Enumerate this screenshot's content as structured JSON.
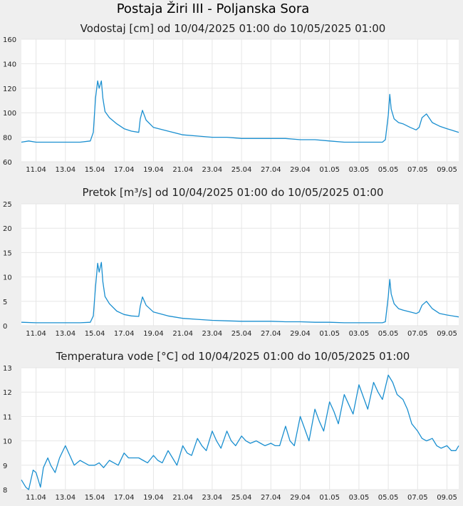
{
  "page_title": "Postaja Žiri III - Poljanska Sora",
  "chart_data": [
    {
      "type": "line",
      "title": "Vodostaj [cm] od 10/04/2025 01:00 do 10/05/2025 01:00",
      "xlabel": "",
      "ylabel": "",
      "ylim": [
        60,
        160
      ],
      "yticks": [
        "60",
        "80",
        "100",
        "120",
        "140",
        "160"
      ],
      "xlim": [
        0,
        29.8
      ],
      "xticks": [
        {
          "x": 1,
          "label": "11.04"
        },
        {
          "x": 3,
          "label": "13.04"
        },
        {
          "x": 5,
          "label": "15.04"
        },
        {
          "x": 7,
          "label": "17.04"
        },
        {
          "x": 9,
          "label": "19.04"
        },
        {
          "x": 11,
          "label": "21.04"
        },
        {
          "x": 13,
          "label": "23.04"
        },
        {
          "x": 15,
          "label": "25.04"
        },
        {
          "x": 17,
          "label": "27.04"
        },
        {
          "x": 19,
          "label": "29.04"
        },
        {
          "x": 21,
          "label": "01.05"
        },
        {
          "x": 23,
          "label": "03.05"
        },
        {
          "x": 25,
          "label": "05.05"
        },
        {
          "x": 27,
          "label": "07.05"
        },
        {
          "x": 29,
          "label": "09.05"
        }
      ],
      "grid": true,
      "line_color": "#1a8fd0",
      "x": [
        0,
        0.5,
        1,
        1.5,
        2,
        3,
        4,
        4.7,
        4.9,
        5.05,
        5.2,
        5.3,
        5.45,
        5.55,
        5.7,
        6.0,
        6.5,
        7.0,
        7.5,
        8.0,
        8.1,
        8.25,
        8.5,
        9.0,
        10,
        11,
        12,
        13,
        14,
        15,
        16,
        17,
        18,
        19,
        20,
        21,
        22,
        23,
        24,
        24.6,
        24.8,
        25.0,
        25.1,
        25.2,
        25.4,
        25.7,
        26,
        26.5,
        26.9,
        27.1,
        27.3,
        27.6,
        28,
        28.5,
        29,
        29.8
      ],
      "values": [
        76,
        77,
        76,
        76,
        76,
        76,
        76,
        77,
        84,
        112,
        126,
        120,
        126,
        112,
        101,
        96,
        91,
        87,
        85,
        84,
        95,
        102,
        94,
        88,
        85,
        82,
        81,
        80,
        80,
        79,
        79,
        79,
        79,
        78,
        78,
        77,
        76,
        76,
        76,
        76,
        78,
        98,
        115,
        103,
        95,
        92,
        91,
        88,
        86,
        88,
        96,
        99,
        92,
        89,
        87,
        84
      ],
      "series": []
    },
    {
      "type": "line",
      "title": "Pretok [m³/s] od 10/04/2025 01:00 do 10/05/2025 01:00",
      "xlabel": "",
      "ylabel": "",
      "ylim": [
        0,
        25
      ],
      "yticks": [
        "0",
        "5",
        "10",
        "15",
        "20",
        "25"
      ],
      "xlim": [
        0,
        29.8
      ],
      "xticks": [
        {
          "x": 1,
          "label": "11.04"
        },
        {
          "x": 3,
          "label": "13.04"
        },
        {
          "x": 5,
          "label": "15.04"
        },
        {
          "x": 7,
          "label": "17.04"
        },
        {
          "x": 9,
          "label": "19.04"
        },
        {
          "x": 11,
          "label": "21.04"
        },
        {
          "x": 13,
          "label": "23.04"
        },
        {
          "x": 15,
          "label": "25.04"
        },
        {
          "x": 17,
          "label": "27.04"
        },
        {
          "x": 19,
          "label": "29.04"
        },
        {
          "x": 21,
          "label": "01.05"
        },
        {
          "x": 23,
          "label": "03.05"
        },
        {
          "x": 25,
          "label": "05.05"
        },
        {
          "x": 27,
          "label": "07.05"
        },
        {
          "x": 29,
          "label": "09.05"
        }
      ],
      "grid": true,
      "line_color": "#1a8fd0",
      "x": [
        0,
        1,
        2,
        3,
        4,
        4.7,
        4.9,
        5.05,
        5.2,
        5.3,
        5.45,
        5.55,
        5.7,
        6.0,
        6.5,
        7.0,
        7.5,
        8.0,
        8.1,
        8.25,
        8.5,
        9.0,
        10,
        11,
        12,
        13,
        14,
        15,
        16,
        17,
        18,
        19,
        20,
        21,
        22,
        23,
        24,
        24.6,
        24.8,
        25.0,
        25.1,
        25.2,
        25.4,
        25.7,
        26,
        26.5,
        26.9,
        27.1,
        27.3,
        27.6,
        28,
        28.5,
        29,
        29.8
      ],
      "values": [
        0.7,
        0.6,
        0.6,
        0.6,
        0.6,
        0.7,
        2.0,
        8.0,
        12.8,
        11.0,
        13.0,
        9.0,
        6.0,
        4.5,
        3.0,
        2.3,
        2.0,
        1.9,
        4.0,
        5.9,
        4.2,
        2.8,
        2.0,
        1.5,
        1.3,
        1.1,
        1.0,
        0.9,
        0.9,
        0.9,
        0.8,
        0.8,
        0.7,
        0.7,
        0.6,
        0.6,
        0.6,
        0.6,
        0.8,
        6.0,
        9.5,
        6.5,
        4.5,
        3.5,
        3.2,
        2.8,
        2.5,
        2.8,
        4.2,
        5.0,
        3.5,
        2.5,
        2.2,
        1.8
      ],
      "series": []
    },
    {
      "type": "line",
      "title": "Temperatura vode [°C] od 10/04/2025 01:00 do 10/05/2025 01:00",
      "xlabel": "",
      "ylabel": "",
      "ylim": [
        8,
        13
      ],
      "yticks": [
        "8",
        "9",
        "10",
        "11",
        "12",
        "13"
      ],
      "xlim": [
        0,
        29.8
      ],
      "xticks": [
        {
          "x": 1,
          "label": "11.04"
        },
        {
          "x": 3,
          "label": "13.04"
        },
        {
          "x": 5,
          "label": "15.04"
        },
        {
          "x": 7,
          "label": "17.04"
        },
        {
          "x": 9,
          "label": "19.04"
        },
        {
          "x": 11,
          "label": "21.04"
        },
        {
          "x": 13,
          "label": "23.04"
        },
        {
          "x": 15,
          "label": "25.04"
        },
        {
          "x": 17,
          "label": "27.04"
        },
        {
          "x": 19,
          "label": "29.04"
        },
        {
          "x": 21,
          "label": "01.05"
        },
        {
          "x": 23,
          "label": "03.05"
        },
        {
          "x": 25,
          "label": "05.05"
        },
        {
          "x": 27,
          "label": "07.05"
        },
        {
          "x": 29,
          "label": "09.05"
        }
      ],
      "grid": true,
      "line_color": "#1a8fd0",
      "x": [
        0,
        0.3,
        0.5,
        0.8,
        1.0,
        1.3,
        1.5,
        1.8,
        2.0,
        2.3,
        2.6,
        3.0,
        3.3,
        3.6,
        4.0,
        4.3,
        4.6,
        5.0,
        5.3,
        5.6,
        6.0,
        6.3,
        6.6,
        7.0,
        7.3,
        7.6,
        8.0,
        8.3,
        8.6,
        9.0,
        9.3,
        9.6,
        10.0,
        10.3,
        10.6,
        11.0,
        11.3,
        11.6,
        12.0,
        12.3,
        12.6,
        13.0,
        13.3,
        13.6,
        14.0,
        14.3,
        14.6,
        15.0,
        15.3,
        15.6,
        16.0,
        16.3,
        16.6,
        17.0,
        17.3,
        17.6,
        18.0,
        18.3,
        18.6,
        19.0,
        19.3,
        19.6,
        20.0,
        20.3,
        20.6,
        21.0,
        21.3,
        21.6,
        22.0,
        22.3,
        22.6,
        23.0,
        23.3,
        23.6,
        24.0,
        24.3,
        24.6,
        25.0,
        25.3,
        25.6,
        26.0,
        26.3,
        26.6,
        27.0,
        27.3,
        27.6,
        28.0,
        28.3,
        28.6,
        29.0,
        29.3,
        29.6,
        29.8
      ],
      "values": [
        8.4,
        8.1,
        8.0,
        8.8,
        8.7,
        8.1,
        8.9,
        9.3,
        9.0,
        8.7,
        9.3,
        9.8,
        9.4,
        9.0,
        9.2,
        9.1,
        9.0,
        9.0,
        9.1,
        8.9,
        9.2,
        9.1,
        9.0,
        9.5,
        9.3,
        9.3,
        9.3,
        9.2,
        9.1,
        9.4,
        9.2,
        9.1,
        9.6,
        9.3,
        9.0,
        9.8,
        9.5,
        9.4,
        10.1,
        9.8,
        9.6,
        10.4,
        10.0,
        9.7,
        10.4,
        10.0,
        9.8,
        10.2,
        10.0,
        9.9,
        10.0,
        9.9,
        9.8,
        9.9,
        9.8,
        9.8,
        10.6,
        10.0,
        9.8,
        11.0,
        10.5,
        10.0,
        11.3,
        10.8,
        10.4,
        11.6,
        11.2,
        10.7,
        11.9,
        11.5,
        11.1,
        12.3,
        11.8,
        11.3,
        12.4,
        12.0,
        11.7,
        12.7,
        12.4,
        11.9,
        11.7,
        11.3,
        10.7,
        10.4,
        10.1,
        10.0,
        10.1,
        9.8,
        9.7,
        9.8,
        9.6,
        9.6,
        9.8
      ],
      "series": []
    }
  ]
}
